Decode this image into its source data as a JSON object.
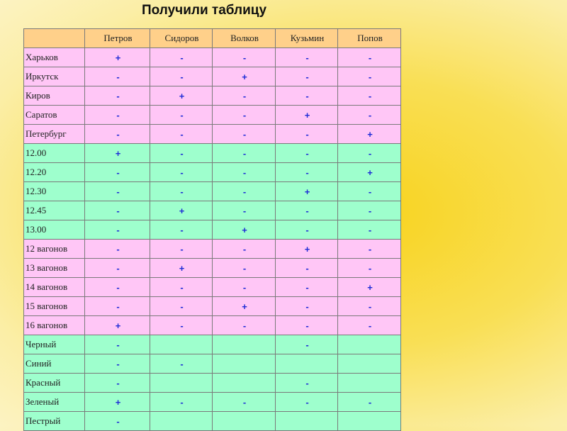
{
  "title": "Получили таблицу",
  "table": {
    "headers": [
      "",
      "Петров",
      "Сидоров",
      "Волков",
      "Кузьмин",
      "Попов"
    ],
    "rows": [
      {
        "label": "Харьков",
        "cells": [
          "+",
          "-",
          "-",
          "-",
          "-"
        ],
        "color": "pink"
      },
      {
        "label": "Иркутск",
        "cells": [
          "-",
          "-",
          "+",
          "-",
          "-"
        ],
        "color": "pink"
      },
      {
        "label": "Киров",
        "cells": [
          "-",
          "+",
          "-",
          "-",
          "-"
        ],
        "color": "pink"
      },
      {
        "label": "Саратов",
        "cells": [
          "-",
          "-",
          "-",
          "+",
          "-"
        ],
        "color": "pink"
      },
      {
        "label": "Петербург",
        "cells": [
          "-",
          "-",
          "-",
          "-",
          "+"
        ],
        "color": "pink"
      },
      {
        "label": "12.00",
        "cells": [
          "+",
          "-",
          "-",
          "-",
          "-"
        ],
        "color": "green"
      },
      {
        "label": "12.20",
        "cells": [
          "-",
          "-",
          "-",
          "-",
          "+"
        ],
        "color": "green"
      },
      {
        "label": "12.30",
        "cells": [
          "-",
          "-",
          "-",
          "+",
          "-"
        ],
        "color": "green"
      },
      {
        "label": "12.45",
        "cells": [
          "-",
          "+",
          "-",
          "-",
          "-"
        ],
        "color": "green"
      },
      {
        "label": "13.00",
        "cells": [
          "-",
          "-",
          "+",
          "-",
          "-"
        ],
        "color": "green"
      },
      {
        "label": "12 вагонов",
        "cells": [
          "-",
          "-",
          "-",
          "+",
          "-"
        ],
        "color": "pink"
      },
      {
        "label": "13 вагонов",
        "cells": [
          "-",
          "+",
          "-",
          "-",
          "-"
        ],
        "color": "pink"
      },
      {
        "label": "14 вагонов",
        "cells": [
          "-",
          "-",
          "-",
          "-",
          "+"
        ],
        "color": "pink"
      },
      {
        "label": "15 вагонов",
        "cells": [
          "-",
          "-",
          "+",
          "-",
          "-"
        ],
        "color": "pink"
      },
      {
        "label": "16 вагонов",
        "cells": [
          "+",
          "-",
          "-",
          "-",
          "-"
        ],
        "color": "pink"
      },
      {
        "label": "Черный",
        "cells": [
          "-",
          "",
          "",
          "-",
          ""
        ],
        "color": "green"
      },
      {
        "label": "Синий",
        "cells": [
          "-",
          "-",
          "",
          "",
          ""
        ],
        "color": "green"
      },
      {
        "label": "Красный",
        "cells": [
          "-",
          "",
          "",
          "-",
          ""
        ],
        "color": "green"
      },
      {
        "label": "Зеленый",
        "cells": [
          "+",
          "-",
          "-",
          "-",
          "-"
        ],
        "color": "green"
      },
      {
        "label": "Пестрый",
        "cells": [
          "-",
          "",
          "",
          "",
          ""
        ],
        "color": "green"
      }
    ]
  }
}
